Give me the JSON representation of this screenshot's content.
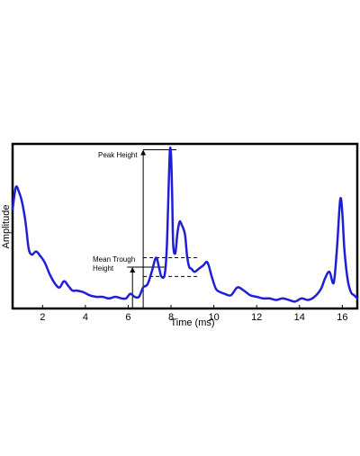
{
  "chart_data": {
    "type": "line",
    "xlabel": "Time (ms)",
    "ylabel": "Amplitude",
    "xlim": [
      0.6,
      16.7
    ],
    "ylim": [
      0,
      1.0
    ],
    "xticks": [
      2,
      4,
      6,
      8,
      10,
      12,
      14,
      16
    ],
    "grid": false,
    "line_color": "#1f1fd6",
    "series": [
      {
        "x": [
          0.6,
          0.75,
          0.9,
          1.05,
          1.2,
          1.35,
          1.5,
          1.7,
          1.9,
          2.1,
          2.35,
          2.6,
          2.8,
          3.0,
          3.2,
          3.4,
          3.6,
          3.9,
          4.2,
          4.5,
          4.8,
          5.1,
          5.4,
          5.7,
          5.9,
          6.1,
          6.3,
          6.5,
          6.7,
          6.9,
          7.1,
          7.3,
          7.45,
          7.55,
          7.7,
          7.8,
          7.9,
          7.95,
          8.0,
          8.05,
          8.1,
          8.2,
          8.3,
          8.4,
          8.5,
          8.65,
          8.75,
          8.85,
          8.95,
          9.1,
          9.3,
          9.5,
          9.7,
          9.9,
          10.1,
          10.3,
          10.5,
          10.8,
          11.1,
          11.4,
          11.7,
          12.0,
          12.3,
          12.6,
          12.9,
          13.2,
          13.5,
          13.8,
          14.1,
          14.4,
          14.7,
          15.0,
          15.2,
          15.4,
          15.6,
          15.75,
          15.9,
          16.0,
          16.1,
          16.25,
          16.4,
          16.55,
          16.7
        ],
        "y": [
          0.6,
          0.74,
          0.71,
          0.64,
          0.52,
          0.35,
          0.31,
          0.33,
          0.3,
          0.26,
          0.18,
          0.12,
          0.1,
          0.14,
          0.11,
          0.08,
          0.08,
          0.07,
          0.05,
          0.04,
          0.04,
          0.03,
          0.04,
          0.03,
          0.03,
          0.06,
          0.04,
          0.04,
          0.1,
          0.12,
          0.2,
          0.29,
          0.22,
          0.17,
          0.18,
          0.35,
          0.8,
          0.98,
          0.95,
          0.72,
          0.38,
          0.32,
          0.45,
          0.52,
          0.5,
          0.44,
          0.3,
          0.23,
          0.22,
          0.2,
          0.22,
          0.24,
          0.26,
          0.17,
          0.09,
          0.07,
          0.06,
          0.05,
          0.1,
          0.08,
          0.05,
          0.04,
          0.03,
          0.03,
          0.02,
          0.03,
          0.02,
          0.01,
          0.03,
          0.02,
          0.04,
          0.09,
          0.16,
          0.2,
          0.13,
          0.35,
          0.66,
          0.58,
          0.34,
          0.15,
          0.07,
          0.05,
          0.03
        ]
      }
    ],
    "annotations": {
      "peak_label": "Peak Height",
      "trough_label_line1": "Mean Trough",
      "trough_label_line2": "Height",
      "peak_value": 0.98,
      "trough_value": 0.23,
      "trough_upper_y": 0.29,
      "trough_lower_y": 0.17,
      "peak_x": 8.0,
      "trough_arrow_x": 6.2,
      "vertical_ref_x": 6.7
    }
  }
}
